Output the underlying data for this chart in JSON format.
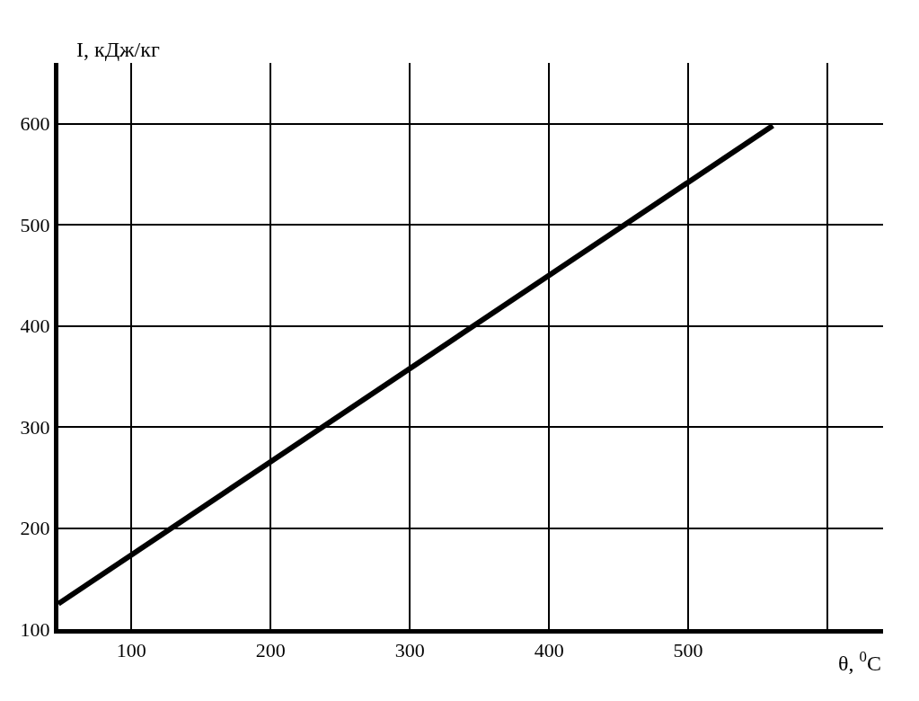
{
  "chart_data": {
    "type": "line",
    "xlabel": "θ, $^{0}$C",
    "ylabel": "I, кДж/кг",
    "x": [
      47.5,
      560.8
    ],
    "series": [
      {
        "color": "#000000",
        "values": [
          125,
          598
        ]
      }
    ],
    "xlim": [
      47.5,
      640
    ],
    "ylim": [
      100,
      660
    ],
    "xticks": [
      100,
      200,
      300,
      400,
      500,
      {
        "value": 600,
        "label": null
      }
    ],
    "yticks": [
      100,
      200,
      300,
      400,
      500,
      600
    ],
    "grid": true,
    "marker": "none",
    "line_style": "solid"
  }
}
